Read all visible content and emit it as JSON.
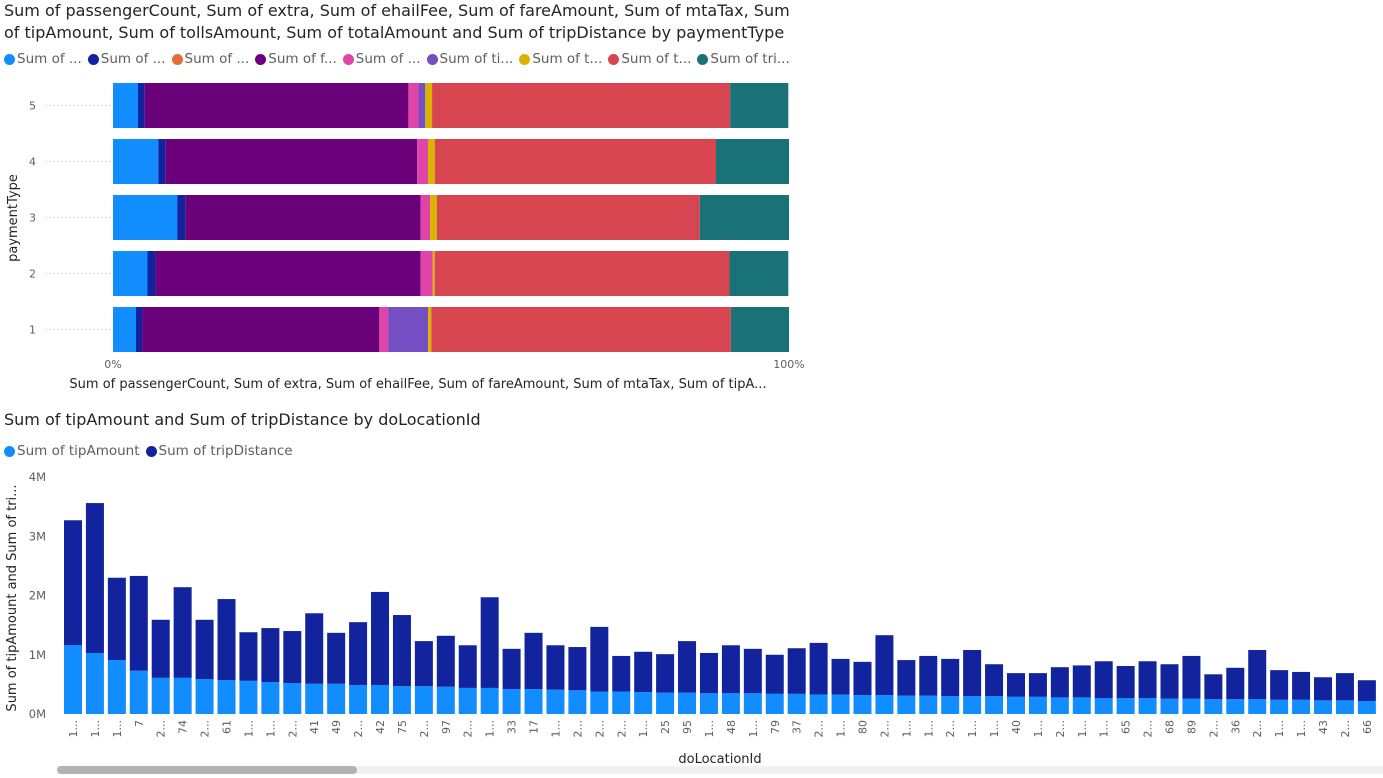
{
  "chart_data": [
    {
      "type": "bar",
      "orientation": "horizontal",
      "stacking": "100%",
      "title": "Sum of passengerCount, Sum of extra, Sum of ehailFee, Sum of fareAmount, Sum of mtaTax, Sum of tipAmount, Sum of tollsAmount, Sum of totalAmount and Sum of tripDistance by paymentType",
      "xlabel": "Sum of passengerCount, Sum of extra, Sum of ehailFee, Sum of fareAmount, Sum of mtaTax, Sum of tipA...",
      "ylabel": "paymentType",
      "x_ticks": [
        "0%",
        "100%"
      ],
      "categories": [
        "5",
        "4",
        "3",
        "2",
        "1"
      ],
      "legend_position": "top-left",
      "legend_labels": [
        "Sum of ...",
        "Sum of ...",
        "Sum of ...",
        "Sum of f...",
        "Sum of ...",
        "Sum of ti...",
        "Sum of t...",
        "Sum of t...",
        "Sum of tri..."
      ],
      "series": [
        {
          "name": "Sum of passengerCount",
          "color": "#118DFF",
          "values": [
            3.7,
            6.7,
            9.5,
            5.1,
            3.4
          ]
        },
        {
          "name": "Sum of extra",
          "color": "#12239E",
          "values": [
            1.0,
            1.1,
            1.2,
            1.2,
            0.9
          ]
        },
        {
          "name": "Sum of ehailFee",
          "color": "#E66C37",
          "values": [
            0,
            0,
            0,
            0,
            0
          ]
        },
        {
          "name": "Sum of fareAmount",
          "color": "#6B007B",
          "values": [
            39.0,
            37.2,
            34.8,
            39.2,
            35.1
          ]
        },
        {
          "name": "Sum of mtaTax",
          "color": "#E044A7",
          "values": [
            1.5,
            1.6,
            1.4,
            1.8,
            1.3
          ]
        },
        {
          "name": "Sum of tipAmount",
          "color": "#744EC2",
          "values": [
            1.0,
            0,
            0,
            0,
            5.9
          ]
        },
        {
          "name": "Sum of tollsAmount",
          "color": "#D9B300",
          "values": [
            1.0,
            1.0,
            1.0,
            0.3,
            0.5
          ]
        },
        {
          "name": "Sum of totalAmount",
          "color": "#D64550",
          "values": [
            44.1,
            41.6,
            38.9,
            43.6,
            44.3
          ]
        },
        {
          "name": "Sum of tripDistance",
          "color": "#197278",
          "values": [
            8.6,
            10.8,
            13.2,
            8.7,
            8.6
          ]
        }
      ]
    },
    {
      "type": "bar",
      "stacking": "stacked",
      "title": "Sum of tipAmount and Sum of tripDistance by doLocationId",
      "xlabel": "doLocationId",
      "ylabel": "Sum of tipAmount and Sum of tri...",
      "ylim": [
        0,
        4000000
      ],
      "y_ticks": [
        "0M",
        "1M",
        "2M",
        "3M",
        "4M"
      ],
      "legend_position": "top-left",
      "categories": [
        "1...",
        "1...",
        "1...",
        "7",
        "2...",
        "74",
        "2...",
        "61",
        "1...",
        "1...",
        "2...",
        "41",
        "49",
        "2...",
        "42",
        "75",
        "2...",
        "97",
        "2...",
        "1...",
        "33",
        "17",
        "1...",
        "2...",
        "2...",
        "2...",
        "1...",
        "25",
        "95",
        "1...",
        "48",
        "1...",
        "79",
        "37",
        "2...",
        "1...",
        "80",
        "2...",
        "1...",
        "1...",
        "2...",
        "1...",
        "1...",
        "40",
        "1...",
        "2...",
        "1...",
        "1...",
        "65",
        "2...",
        "68",
        "89",
        "2...",
        "36",
        "2...",
        "1...",
        "1...",
        "43",
        "2...",
        "66"
      ],
      "series": [
        {
          "name": "Sum of tipAmount",
          "color": "#118DFF",
          "values": [
            1.16,
            1.03,
            0.91,
            0.73,
            0.61,
            0.61,
            0.59,
            0.57,
            0.56,
            0.54,
            0.52,
            0.51,
            0.51,
            0.49,
            0.49,
            0.47,
            0.47,
            0.46,
            0.44,
            0.44,
            0.42,
            0.42,
            0.41,
            0.4,
            0.38,
            0.38,
            0.37,
            0.36,
            0.36,
            0.35,
            0.35,
            0.35,
            0.34,
            0.34,
            0.33,
            0.33,
            0.32,
            0.32,
            0.31,
            0.31,
            0.3,
            0.3,
            0.3,
            0.29,
            0.29,
            0.28,
            0.28,
            0.27,
            0.27,
            0.27,
            0.26,
            0.26,
            0.25,
            0.25,
            0.25,
            0.24,
            0.24,
            0.23,
            0.23,
            0.22
          ]
        },
        {
          "name": "Sum of tripDistance",
          "color": "#12239E",
          "values": [
            2.11,
            2.53,
            1.39,
            1.6,
            0.98,
            1.53,
            1.0,
            1.37,
            0.82,
            0.91,
            0.88,
            1.19,
            0.86,
            1.06,
            1.57,
            1.2,
            0.76,
            0.86,
            0.72,
            1.53,
            0.68,
            0.95,
            0.75,
            0.73,
            1.09,
            0.6,
            0.68,
            0.65,
            0.87,
            0.68,
            0.81,
            0.75,
            0.66,
            0.77,
            0.87,
            0.6,
            0.56,
            1.01,
            0.6,
            0.67,
            0.63,
            0.78,
            0.54,
            0.4,
            0.4,
            0.51,
            0.54,
            0.62,
            0.54,
            0.62,
            0.58,
            0.72,
            0.42,
            0.53,
            0.83,
            0.5,
            0.47,
            0.39,
            0.46,
            0.35
          ]
        }
      ],
      "value_unit": "M"
    }
  ]
}
